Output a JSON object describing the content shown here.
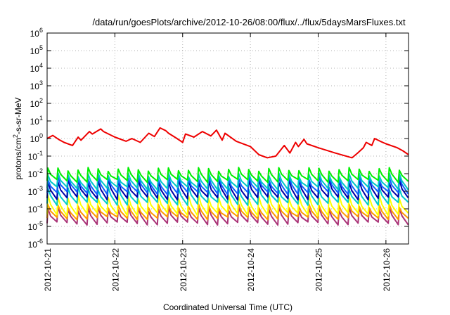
{
  "chart_data": {
    "type": "line",
    "title": "/data/run/goesPlots/archive/2012-10-26/08:00/flux/../flux/5daysMarsFluxes.txt",
    "xlabel": "Coordinated Universal Time (UTC)",
    "ylabel": "protons/cm²-s-sr-MeV",
    "x_ticks": [
      "2012-10-21",
      "2012-10-22",
      "2012-10-23",
      "2012-10-24",
      "2012-10-25",
      "2012-10-26"
    ],
    "xlim": [
      "2012-10-21 00:00",
      "2012-10-26 08:00"
    ],
    "y_scale": "log",
    "ylim": [
      1e-06,
      1000000.0
    ],
    "y_ticks": [
      {
        "base": "10",
        "exp": "-6",
        "value": 1e-06
      },
      {
        "base": "10",
        "exp": "-5",
        "value": 1e-05
      },
      {
        "base": "10",
        "exp": "-4",
        "value": 0.0001
      },
      {
        "base": "10",
        "exp": "-3",
        "value": 0.001
      },
      {
        "base": "10",
        "exp": "-2",
        "value": 0.01
      },
      {
        "base": "10",
        "exp": "-1",
        "value": 0.1
      },
      {
        "base": "10",
        "exp": "0",
        "value": 1
      },
      {
        "base": "10",
        "exp": "1",
        "value": 10
      },
      {
        "base": "10",
        "exp": "2",
        "value": 100
      },
      {
        "base": "10",
        "exp": "3",
        "value": 1000
      },
      {
        "base": "10",
        "exp": "4",
        "value": 10000
      },
      {
        "base": "10",
        "exp": "5",
        "value": 100000
      },
      {
        "base": "10",
        "exp": "6",
        "value": 1000000
      }
    ],
    "grid": true,
    "legend": "none",
    "series": [
      {
        "color": "#ee0000",
        "x": [
          "2012-10-21 00:00",
          "2012-10-21 02:00",
          "2012-10-21 04:00",
          "2012-10-21 06:00",
          "2012-10-21 09:00",
          "2012-10-21 11:00",
          "2012-10-21 12:00",
          "2012-10-21 15:00",
          "2012-10-21 16:00",
          "2012-10-21 19:00",
          "2012-10-21 20:00",
          "2012-10-22 00:00",
          "2012-10-22 04:00",
          "2012-10-22 06:00",
          "2012-10-22 09:00",
          "2012-10-22 12:00",
          "2012-10-22 14:00",
          "2012-10-22 16:00",
          "2012-10-22 18:00",
          "2012-10-22 19:00",
          "2012-10-22 22:00",
          "2012-10-23 00:00",
          "2012-10-23 01:00",
          "2012-10-23 04:00",
          "2012-10-23 07:00",
          "2012-10-23 10:00",
          "2012-10-23 12:00",
          "2012-10-23 14:00",
          "2012-10-23 15:00",
          "2012-10-23 19:00",
          "2012-10-24 00:00",
          "2012-10-24 03:00",
          "2012-10-24 06:00",
          "2012-10-24 09:00",
          "2012-10-24 12:00",
          "2012-10-24 14:00",
          "2012-10-24 16:00",
          "2012-10-24 17:00",
          "2012-10-24 19:00",
          "2012-10-24 20:00",
          "2012-10-25 00:00",
          "2012-10-25 06:00",
          "2012-10-25 12:00",
          "2012-10-25 14:00",
          "2012-10-25 16:00",
          "2012-10-25 17:00",
          "2012-10-25 19:00",
          "2012-10-25 20:00",
          "2012-10-25 22:00",
          "2012-10-26 00:00",
          "2012-10-26 04:00",
          "2012-10-26 06:00",
          "2012-10-26 08:00"
        ],
        "y": [
          1.0,
          1.5,
          0.9,
          0.6,
          0.4,
          1.2,
          0.8,
          2.5,
          1.8,
          3.5,
          2.5,
          1.2,
          0.7,
          1.0,
          0.6,
          2.0,
          1.3,
          4.0,
          2.8,
          2.0,
          1.0,
          0.6,
          1.8,
          1.2,
          2.5,
          1.4,
          3.0,
          0.8,
          2.0,
          0.7,
          0.35,
          0.12,
          0.08,
          0.1,
          0.4,
          0.15,
          0.6,
          0.35,
          0.9,
          0.5,
          0.3,
          0.15,
          0.08,
          0.15,
          0.3,
          0.6,
          0.4,
          1.0,
          0.7,
          0.5,
          0.3,
          0.2,
          0.12
        ]
      },
      {
        "color": "#00ee00",
        "base": 0.004,
        "peak": 0.018,
        "teeth": 36
      },
      {
        "color": "#00c8c8",
        "base": 0.0015,
        "peak": 0.009,
        "teeth": 36
      },
      {
        "color": "#1060ff",
        "base": 0.0008,
        "peak": 0.006,
        "teeth": 36
      },
      {
        "color": "#0000aa",
        "base": 0.0004,
        "peak": 0.004,
        "teeth": 36
      },
      {
        "color": "#00cccc",
        "base": 0.0002,
        "peak": 0.0015,
        "teeth": 36
      },
      {
        "color": "#ffff00",
        "base": 5e-05,
        "peak": 0.0005,
        "teeth": 36
      },
      {
        "color": "#ff9900",
        "base": 3e-05,
        "peak": 0.00015,
        "teeth": 36
      },
      {
        "color": "#aa3377",
        "base": 1.5e-05,
        "peak": 0.0001,
        "teeth": 36
      }
    ]
  }
}
